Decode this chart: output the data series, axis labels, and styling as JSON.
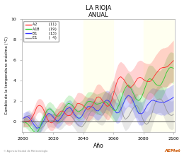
{
  "title": "LA RIOJA",
  "subtitle": "ANUAL",
  "xlabel": "Año",
  "ylabel": "Cambio de la temperatura máxima (°C)",
  "xlim": [
    1999,
    2101
  ],
  "ylim": [
    -1,
    10
  ],
  "yticks": [
    0,
    2,
    4,
    6,
    8,
    10
  ],
  "xticks": [
    2000,
    2020,
    2040,
    2060,
    2080,
    2100
  ],
  "scenarios": [
    "A2",
    "A1B",
    "B1",
    "E1"
  ],
  "scenario_counts": [
    "(11)",
    "(19)",
    "(13)",
    "( 4)"
  ],
  "colors": [
    "#ff3333",
    "#33cc33",
    "#3333ff",
    "#999999"
  ],
  "bg_bands": [
    {
      "xmin": 2040,
      "xmax": 2060,
      "color": "#fffff0"
    },
    {
      "xmin": 2080,
      "xmax": 2101,
      "color": "#fffff0"
    }
  ],
  "zero_line_color": "#555555",
  "seed": 7
}
